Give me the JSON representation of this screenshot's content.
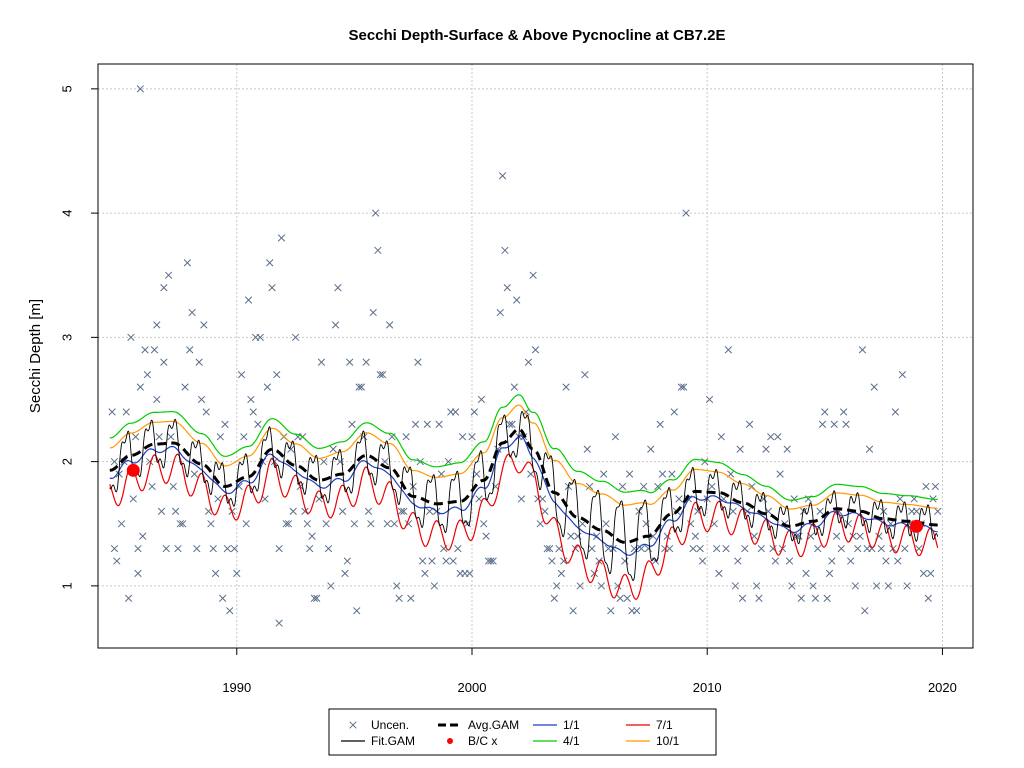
{
  "chart_data": {
    "type": "scatter",
    "title": "Secchi Depth-Surface & Above Pycnocline at CB7.2E",
    "xlabel": "",
    "ylabel": "Secchi Depth [m]",
    "xlim": [
      1984.1,
      2021.3
    ],
    "ylim": [
      0.5,
      5.2
    ],
    "x_ticks": [
      1990,
      2000,
      2010,
      2020
    ],
    "y_ticks": [
      1,
      2,
      3,
      4,
      5
    ],
    "x_tick_labels": [
      "1990",
      "2000",
      "2010",
      "2020"
    ],
    "y_tick_labels": [
      "1",
      "2",
      "3",
      "4",
      "5"
    ],
    "grid": true,
    "legend_position": "bottom",
    "legend": [
      {
        "label": "Uncen.",
        "kind": "point-x",
        "color": "#5a6e8a"
      },
      {
        "label": "Fit.GAM",
        "kind": "line",
        "color": "#000000"
      },
      {
        "label": "Avg.GAM",
        "kind": "dashed",
        "color": "#000000"
      },
      {
        "label": "B/C x",
        "kind": "point-dot",
        "color": "#ff0000"
      },
      {
        "label": "1/1",
        "kind": "line",
        "color": "#1f3fbf"
      },
      {
        "label": "4/1",
        "kind": "line",
        "color": "#00cc00"
      },
      {
        "label": "7/1",
        "kind": "line",
        "color": "#ee0000"
      },
      {
        "label": "10/1",
        "kind": "line",
        "color": "#ff9900"
      }
    ],
    "colors": {
      "points": "#5a6e8a",
      "fit_gam": "#000000",
      "avg_gam": "#000000",
      "bc": "#ff0000",
      "d1_1": "#1f3fbf",
      "d4_1": "#00cc00",
      "d7_1": "#ee0000",
      "d10_1": "#ff9900",
      "grid": "#c8c8c8"
    },
    "avg_gam": {
      "x": [
        1984.6,
        1985.5,
        1986.5,
        1987.3,
        1988.5,
        1989.5,
        1990.5,
        1991.5,
        1992.5,
        1993.5,
        1994.5,
        1995.5,
        1996.5,
        1997.5,
        1998.5,
        1999.5,
        2000.5,
        2001.3,
        2002.0,
        2002.6,
        2003.5,
        2004.5,
        2005.5,
        2006.5,
        2007.5,
        2008.5,
        2009.5,
        2010.5,
        2011.5,
        2012.5,
        2013.5,
        2014.5,
        2015.5,
        2016.5,
        2017.5,
        2018.5,
        2019.8
      ],
      "y": [
        1.93,
        2.05,
        2.14,
        2.15,
        1.98,
        1.8,
        1.88,
        2.1,
        1.97,
        1.85,
        1.9,
        2.05,
        1.95,
        1.72,
        1.66,
        1.68,
        1.85,
        2.15,
        2.26,
        2.1,
        1.75,
        1.55,
        1.45,
        1.35,
        1.4,
        1.58,
        1.76,
        1.75,
        1.67,
        1.58,
        1.48,
        1.52,
        1.62,
        1.6,
        1.54,
        1.52,
        1.49
      ]
    },
    "seasonal_amplitude": {
      "x": [
        1985,
        1990,
        1995,
        1998,
        2000,
        2002,
        2004,
        2006.5,
        2009,
        2012,
        2015,
        2019
      ],
      "y": [
        0.2,
        0.18,
        0.2,
        0.24,
        0.26,
        0.22,
        0.32,
        0.36,
        0.2,
        0.16,
        0.13,
        0.14
      ]
    },
    "bc_points": [
      {
        "x": 1985.6,
        "y": 1.93
      },
      {
        "x": 2018.9,
        "y": 1.48
      }
    ],
    "uncensored": [
      [
        1984.7,
        2.4
      ],
      [
        1984.8,
        2.0
      ],
      [
        1984.8,
        1.3
      ],
      [
        1984.9,
        1.2
      ],
      [
        1985.0,
        1.9
      ],
      [
        1985.1,
        1.5
      ],
      [
        1985.2,
        2.0
      ],
      [
        1985.3,
        2.4
      ],
      [
        1985.4,
        0.9
      ],
      [
        1985.5,
        3.0
      ],
      [
        1985.6,
        1.7
      ],
      [
        1985.7,
        2.2
      ],
      [
        1985.8,
        1.3
      ],
      [
        1985.8,
        1.1
      ],
      [
        1985.9,
        2.6
      ],
      [
        1986.0,
        1.4
      ],
      [
        1986.1,
        2.9
      ],
      [
        1986.2,
        2.7
      ],
      [
        1986.3,
        2.0
      ],
      [
        1986.4,
        1.8
      ],
      [
        1986.5,
        2.9
      ],
      [
        1986.6,
        3.1
      ],
      [
        1986.6,
        2.5
      ],
      [
        1986.7,
        2.2
      ],
      [
        1986.8,
        1.6
      ],
      [
        1986.9,
        2.8
      ],
      [
        1986.9,
        3.4
      ],
      [
        1987.0,
        1.3
      ],
      [
        1987.1,
        3.5
      ],
      [
        1987.2,
        2.2
      ],
      [
        1987.3,
        1.8
      ],
      [
        1987.4,
        1.6
      ],
      [
        1987.5,
        1.3
      ],
      [
        1987.6,
        1.5
      ],
      [
        1987.7,
        1.5
      ],
      [
        1987.8,
        2.6
      ],
      [
        1987.9,
        3.6
      ],
      [
        1988.0,
        2.9
      ],
      [
        1988.1,
        3.2
      ],
      [
        1988.2,
        1.9
      ],
      [
        1988.3,
        1.3
      ],
      [
        1988.4,
        2.8
      ],
      [
        1988.5,
        2.5
      ],
      [
        1988.6,
        3.1
      ],
      [
        1988.7,
        2.4
      ],
      [
        1988.8,
        1.6
      ],
      [
        1988.9,
        1.5
      ],
      [
        1989.0,
        1.3
      ],
      [
        1989.1,
        1.1
      ],
      [
        1989.2,
        1.7
      ],
      [
        1989.3,
        2.2
      ],
      [
        1989.4,
        0.9
      ],
      [
        1989.5,
        2.3
      ],
      [
        1989.6,
        1.3
      ],
      [
        1989.7,
        0.8
      ],
      [
        1989.8,
        1.6
      ],
      [
        1989.9,
        1.3
      ],
      [
        1990.0,
        1.1
      ],
      [
        1990.1,
        1.8
      ],
      [
        1990.2,
        2.7
      ],
      [
        1990.3,
        2.2
      ],
      [
        1990.4,
        1.5
      ],
      [
        1990.5,
        3.3
      ],
      [
        1990.6,
        2.5
      ],
      [
        1990.7,
        2.4
      ],
      [
        1990.8,
        3.0
      ],
      [
        1990.9,
        2.3
      ],
      [
        1991.0,
        3.0
      ],
      [
        1991.1,
        2.0
      ],
      [
        1991.2,
        1.7
      ],
      [
        1991.3,
        2.6
      ],
      [
        1991.4,
        3.6
      ],
      [
        1991.5,
        3.4
      ],
      [
        1991.6,
        2.0
      ],
      [
        1991.7,
        2.7
      ],
      [
        1991.8,
        1.3
      ],
      [
        1991.8,
        0.7
      ],
      [
        1991.9,
        3.8
      ],
      [
        1992.0,
        2.2
      ],
      [
        1992.1,
        1.5
      ],
      [
        1992.2,
        1.5
      ],
      [
        1992.3,
        2.1
      ],
      [
        1992.4,
        1.6
      ],
      [
        1992.5,
        3.0
      ],
      [
        1992.6,
        2.2
      ],
      [
        1992.7,
        1.8
      ],
      [
        1992.8,
        2.2
      ],
      [
        1992.9,
        1.6
      ],
      [
        1993.0,
        1.5
      ],
      [
        1993.1,
        1.3
      ],
      [
        1993.2,
        1.4
      ],
      [
        1993.3,
        0.9
      ],
      [
        1993.4,
        0.9
      ],
      [
        1993.5,
        1.7
      ],
      [
        1993.6,
        2.8
      ],
      [
        1993.7,
        2.0
      ],
      [
        1993.8,
        1.5
      ],
      [
        1993.9,
        1.3
      ],
      [
        1994.0,
        1.0
      ],
      [
        1994.1,
        2.1
      ],
      [
        1994.2,
        3.1
      ],
      [
        1994.3,
        3.4
      ],
      [
        1994.4,
        2.0
      ],
      [
        1994.5,
        1.6
      ],
      [
        1994.6,
        1.1
      ],
      [
        1994.7,
        1.2
      ],
      [
        1994.8,
        2.8
      ],
      [
        1994.9,
        2.3
      ],
      [
        1995.0,
        1.5
      ],
      [
        1995.1,
        0.8
      ],
      [
        1995.2,
        2.6
      ],
      [
        1995.3,
        2.6
      ],
      [
        1995.4,
        2.2
      ],
      [
        1995.5,
        2.8
      ],
      [
        1995.6,
        1.6
      ],
      [
        1995.7,
        1.5
      ],
      [
        1995.8,
        3.2
      ],
      [
        1995.9,
        4.0
      ],
      [
        1996.0,
        3.7
      ],
      [
        1996.1,
        2.7
      ],
      [
        1996.2,
        2.7
      ],
      [
        1996.3,
        2.0
      ],
      [
        1996.4,
        1.5
      ],
      [
        1996.5,
        3.1
      ],
      [
        1996.6,
        2.2
      ],
      [
        1996.7,
        1.5
      ],
      [
        1996.8,
        1.0
      ],
      [
        1996.9,
        0.9
      ],
      [
        1997.0,
        1.6
      ],
      [
        1997.1,
        1.6
      ],
      [
        1997.2,
        2.2
      ],
      [
        1997.3,
        1.5
      ],
      [
        1997.4,
        0.9
      ],
      [
        1997.5,
        1.8
      ],
      [
        1997.6,
        2.3
      ],
      [
        1997.7,
        2.8
      ],
      [
        1997.8,
        2.0
      ],
      [
        1997.9,
        1.2
      ],
      [
        1998.0,
        1.1
      ],
      [
        1998.1,
        2.3
      ],
      [
        1998.2,
        1.6
      ],
      [
        1998.3,
        1.2
      ],
      [
        1998.4,
        1.0
      ],
      [
        1998.5,
        1.6
      ],
      [
        1998.6,
        2.3
      ],
      [
        1998.7,
        1.9
      ],
      [
        1998.8,
        1.3
      ],
      [
        1998.9,
        1.2
      ],
      [
        1999.0,
        2.0
      ],
      [
        1999.1,
        2.4
      ],
      [
        1999.2,
        1.2
      ],
      [
        1999.3,
        2.4
      ],
      [
        1999.4,
        1.3
      ],
      [
        1999.5,
        1.1
      ],
      [
        1999.6,
        2.2
      ],
      [
        1999.7,
        1.1
      ],
      [
        1999.8,
        1.5
      ],
      [
        1999.9,
        1.1
      ],
      [
        2000.0,
        2.2
      ],
      [
        2000.1,
        2.4
      ],
      [
        2000.2,
        1.9
      ],
      [
        2000.3,
        1.7
      ],
      [
        2000.4,
        2.5
      ],
      [
        2000.5,
        1.5
      ],
      [
        2000.6,
        1.4
      ],
      [
        2000.7,
        1.2
      ],
      [
        2000.8,
        1.2
      ],
      [
        2000.9,
        1.2
      ],
      [
        2001.0,
        1.8
      ],
      [
        2001.1,
        2.1
      ],
      [
        2001.2,
        3.2
      ],
      [
        2001.3,
        4.3
      ],
      [
        2001.4,
        3.7
      ],
      [
        2001.5,
        3.4
      ],
      [
        2001.6,
        2.3
      ],
      [
        2001.7,
        2.3
      ],
      [
        2001.8,
        2.6
      ],
      [
        2001.9,
        3.3
      ],
      [
        2002.0,
        2.2
      ],
      [
        2002.1,
        1.7
      ],
      [
        2002.2,
        2.2
      ],
      [
        2002.3,
        2.4
      ],
      [
        2002.4,
        2.8
      ],
      [
        2002.5,
        1.9
      ],
      [
        2002.6,
        3.5
      ],
      [
        2002.7,
        2.9
      ],
      [
        2002.8,
        1.7
      ],
      [
        2002.9,
        1.5
      ],
      [
        2003.0,
        1.7
      ],
      [
        2003.1,
        1.6
      ],
      [
        2003.2,
        1.3
      ],
      [
        2003.3,
        1.3
      ],
      [
        2003.4,
        1.2
      ],
      [
        2003.5,
        0.9
      ],
      [
        2003.6,
        1.0
      ],
      [
        2003.7,
        1.3
      ],
      [
        2003.8,
        1.1
      ],
      [
        2003.9,
        1.2
      ],
      [
        2004.0,
        2.6
      ],
      [
        2004.1,
        1.8
      ],
      [
        2004.2,
        1.4
      ],
      [
        2004.3,
        0.8
      ],
      [
        2004.4,
        1.3
      ],
      [
        2004.5,
        1.4
      ],
      [
        2004.6,
        1.0
      ],
      [
        2004.7,
        1.5
      ],
      [
        2004.8,
        2.7
      ],
      [
        2004.9,
        2.1
      ],
      [
        2005.0,
        1.8
      ],
      [
        2005.1,
        1.3
      ],
      [
        2005.2,
        1.1
      ],
      [
        2005.3,
        1.4
      ],
      [
        2005.4,
        1.2
      ],
      [
        2005.5,
        1.0
      ],
      [
        2005.6,
        1.9
      ],
      [
        2005.7,
        1.5
      ],
      [
        2005.8,
        1.3
      ],
      [
        2005.9,
        0.8
      ],
      [
        2006.0,
        1.3
      ],
      [
        2006.1,
        2.2
      ],
      [
        2006.2,
        1.0
      ],
      [
        2006.3,
        0.9
      ],
      [
        2006.4,
        1.8
      ],
      [
        2006.5,
        1.2
      ],
      [
        2006.6,
        0.9
      ],
      [
        2006.7,
        1.9
      ],
      [
        2006.8,
        0.8
      ],
      [
        2006.9,
        1.3
      ],
      [
        2007.0,
        0.8
      ],
      [
        2007.1,
        1.6
      ],
      [
        2007.2,
        1.3
      ],
      [
        2007.3,
        1.8
      ],
      [
        2007.4,
        1.5
      ],
      [
        2007.5,
        1.3
      ],
      [
        2007.6,
        2.1
      ],
      [
        2007.7,
        1.4
      ],
      [
        2007.8,
        1.2
      ],
      [
        2007.9,
        1.8
      ],
      [
        2008.0,
        2.3
      ],
      [
        2008.1,
        1.9
      ],
      [
        2008.2,
        1.3
      ],
      [
        2008.3,
        1.4
      ],
      [
        2008.4,
        1.3
      ],
      [
        2008.5,
        1.9
      ],
      [
        2008.6,
        2.4
      ],
      [
        2008.7,
        1.6
      ],
      [
        2008.8,
        1.7
      ],
      [
        2008.9,
        2.6
      ],
      [
        2009.0,
        2.6
      ],
      [
        2009.1,
        4.0
      ],
      [
        2009.2,
        1.7
      ],
      [
        2009.3,
        1.5
      ],
      [
        2009.4,
        1.3
      ],
      [
        2009.5,
        1.4
      ],
      [
        2009.6,
        1.6
      ],
      [
        2009.7,
        1.3
      ],
      [
        2009.8,
        1.2
      ],
      [
        2009.9,
        2.0
      ],
      [
        2010.0,
        1.7
      ],
      [
        2010.1,
        2.5
      ],
      [
        2010.2,
        1.8
      ],
      [
        2010.3,
        1.5
      ],
      [
        2010.4,
        1.3
      ],
      [
        2010.5,
        1.1
      ],
      [
        2010.6,
        2.2
      ],
      [
        2010.7,
        1.7
      ],
      [
        2010.8,
        1.3
      ],
      [
        2010.9,
        2.9
      ],
      [
        2011.0,
        1.9
      ],
      [
        2011.1,
        1.6
      ],
      [
        2011.2,
        1.0
      ],
      [
        2011.3,
        1.2
      ],
      [
        2011.4,
        2.1
      ],
      [
        2011.5,
        0.9
      ],
      [
        2011.6,
        1.3
      ],
      [
        2011.7,
        1.6
      ],
      [
        2011.8,
        2.3
      ],
      [
        2011.9,
        1.8
      ],
      [
        2012.0,
        1.4
      ],
      [
        2012.1,
        1.0
      ],
      [
        2012.2,
        0.9
      ],
      [
        2012.3,
        1.3
      ],
      [
        2012.4,
        1.7
      ],
      [
        2012.5,
        2.1
      ],
      [
        2012.6,
        1.6
      ],
      [
        2012.7,
        2.2
      ],
      [
        2012.8,
        1.3
      ],
      [
        2012.9,
        1.2
      ],
      [
        2013.0,
        2.2
      ],
      [
        2013.1,
        1.9
      ],
      [
        2013.2,
        1.3
      ],
      [
        2013.3,
        1.5
      ],
      [
        2013.4,
        2.1
      ],
      [
        2013.5,
        1.2
      ],
      [
        2013.6,
        1.0
      ],
      [
        2013.7,
        1.7
      ],
      [
        2013.8,
        1.4
      ],
      [
        2013.9,
        1.4
      ],
      [
        2014.0,
        0.9
      ],
      [
        2014.1,
        1.6
      ],
      [
        2014.2,
        1.1
      ],
      [
        2014.3,
        1.7
      ],
      [
        2014.4,
        1.4
      ],
      [
        2014.5,
        1.0
      ],
      [
        2014.6,
        0.9
      ],
      [
        2014.7,
        1.3
      ],
      [
        2014.8,
        1.6
      ],
      [
        2014.9,
        2.3
      ],
      [
        2015.0,
        2.4
      ],
      [
        2015.1,
        0.9
      ],
      [
        2015.2,
        1.1
      ],
      [
        2015.3,
        1.2
      ],
      [
        2015.4,
        2.3
      ],
      [
        2015.5,
        1.4
      ],
      [
        2015.6,
        1.6
      ],
      [
        2015.7,
        1.3
      ],
      [
        2015.8,
        2.4
      ],
      [
        2015.9,
        2.3
      ],
      [
        2016.0,
        1.5
      ],
      [
        2016.1,
        1.2
      ],
      [
        2016.2,
        1.4
      ],
      [
        2016.3,
        1.0
      ],
      [
        2016.4,
        1.3
      ],
      [
        2016.5,
        1.4
      ],
      [
        2016.6,
        2.9
      ],
      [
        2016.7,
        0.8
      ],
      [
        2016.8,
        1.3
      ],
      [
        2016.9,
        2.1
      ],
      [
        2017.0,
        1.3
      ],
      [
        2017.1,
        2.6
      ],
      [
        2017.2,
        1.0
      ],
      [
        2017.3,
        1.4
      ],
      [
        2017.4,
        1.3
      ],
      [
        2017.5,
        1.6
      ],
      [
        2017.6,
        1.2
      ],
      [
        2017.7,
        1.0
      ],
      [
        2017.8,
        1.5
      ],
      [
        2017.9,
        1.3
      ],
      [
        2018.0,
        2.4
      ],
      [
        2018.1,
        1.2
      ],
      [
        2018.2,
        1.7
      ],
      [
        2018.3,
        2.7
      ],
      [
        2018.4,
        1.3
      ],
      [
        2018.5,
        1.0
      ],
      [
        2018.6,
        1.5
      ],
      [
        2018.7,
        1.6
      ],
      [
        2018.8,
        1.7
      ],
      [
        2018.9,
        1.6
      ],
      [
        2019.0,
        1.3
      ],
      [
        2019.1,
        1.5
      ],
      [
        2019.2,
        1.1
      ],
      [
        2019.3,
        1.8
      ],
      [
        2019.4,
        0.9
      ],
      [
        2019.5,
        1.1
      ],
      [
        2019.6,
        1.7
      ],
      [
        2019.7,
        1.8
      ],
      [
        2019.8,
        1.6
      ],
      [
        1985.9,
        5.0
      ]
    ]
  }
}
